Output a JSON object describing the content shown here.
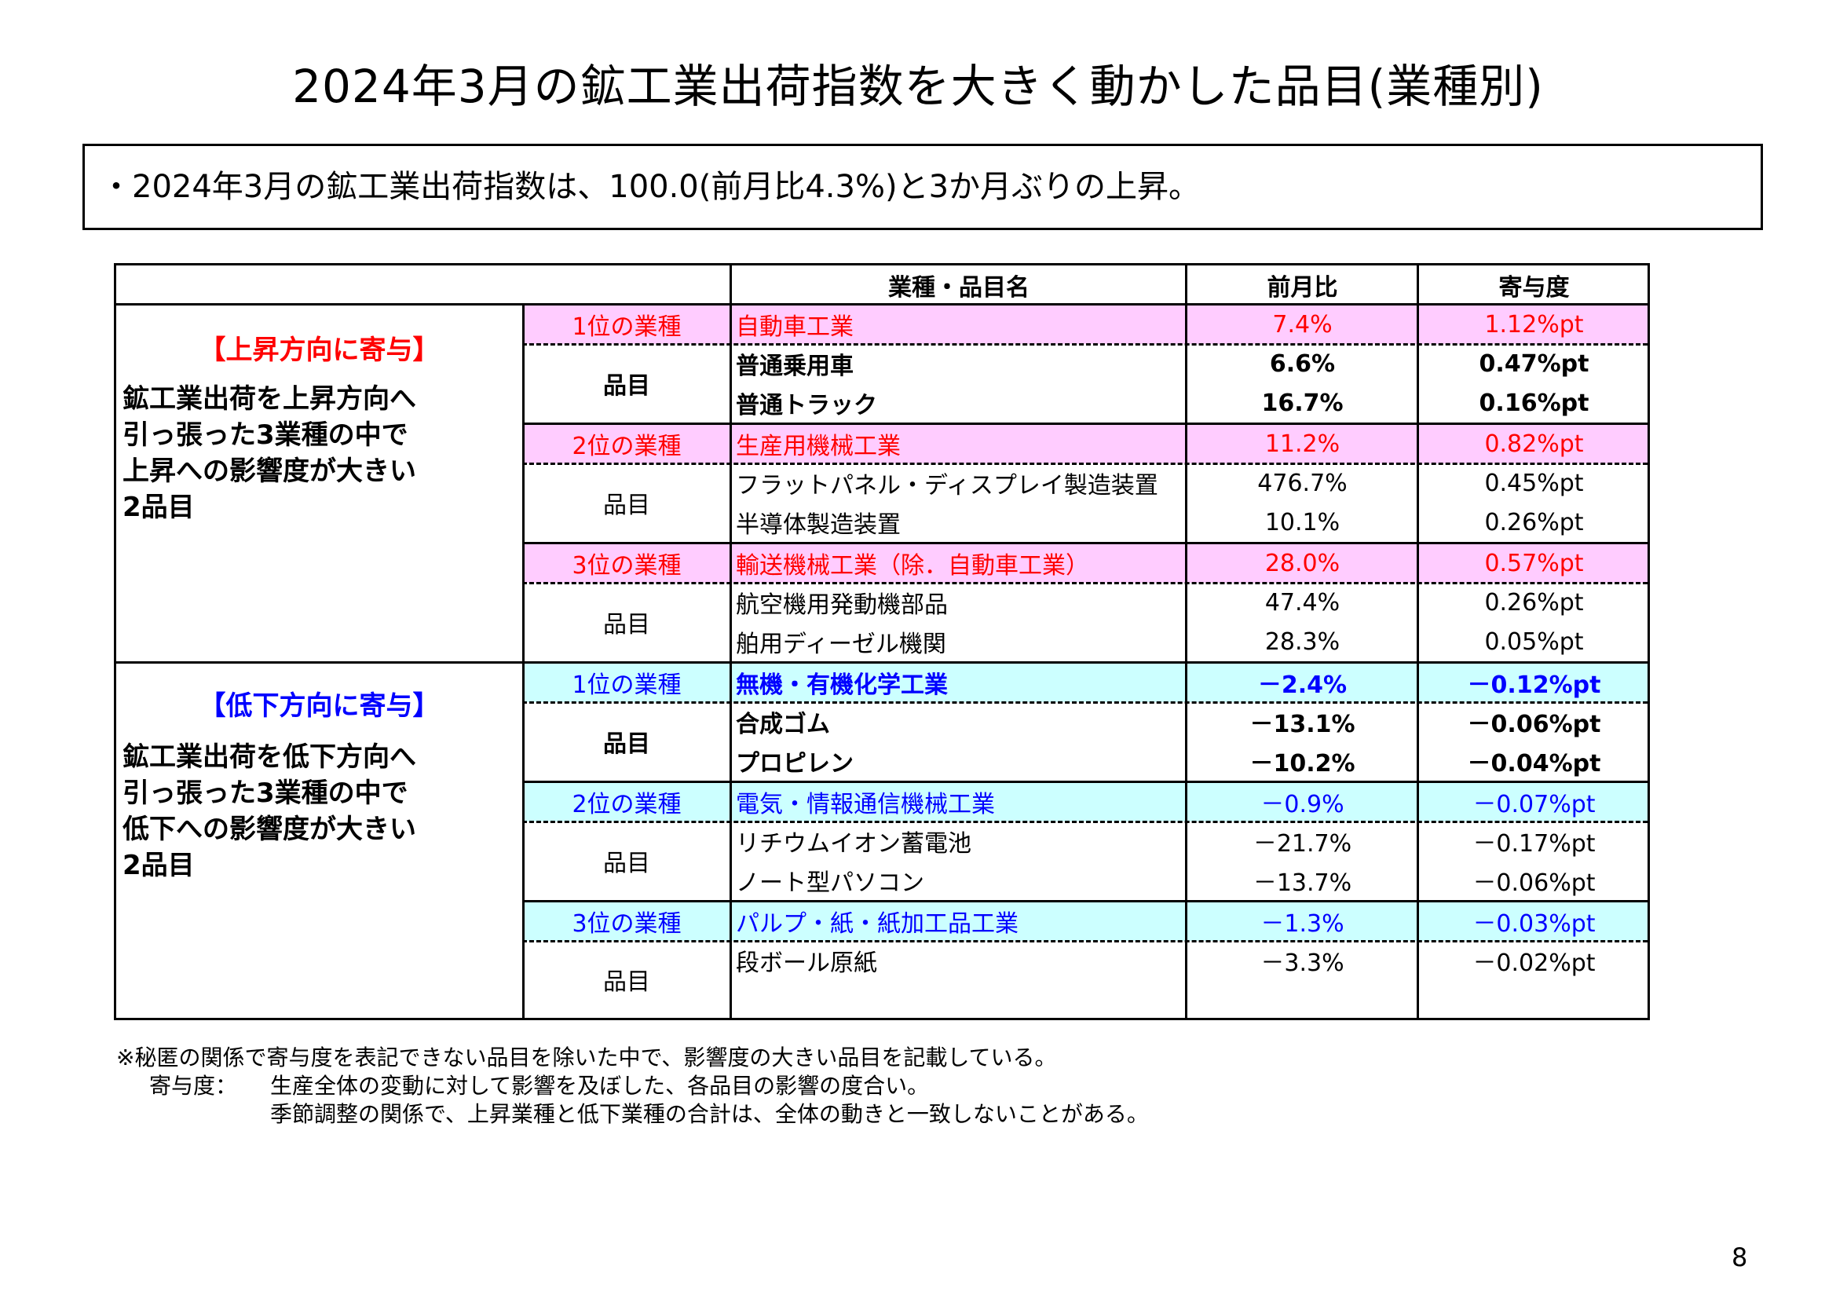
{
  "title": "2024年3月の鉱工業出荷指数を大きく動かした品目(業種別)",
  "summary": "・2024年3月の鉱工業出荷指数は、100.0(前月比4.3%)と3か月ぶりの上昇。",
  "header": {
    "name": "業種・品目名",
    "mom": "前月比",
    "contrib": "寄与度"
  },
  "rise": {
    "heading": "【上昇方向に寄与】",
    "desc": [
      "鉱工業出荷を上昇方向へ",
      "引っ張った3業種の中で",
      "上昇への影響度が大きい",
      "2品目"
    ],
    "groups": [
      {
        "rank": "1位の業種",
        "industry": "自動車工業",
        "mom": "7.4%",
        "contrib": "1.12%pt",
        "label": "品目",
        "items": [
          {
            "name": "普通乗用車",
            "mom": "6.6%",
            "contrib": "0.47%pt"
          },
          {
            "name": "普通トラック",
            "mom": "16.7%",
            "contrib": "0.16%pt"
          }
        ]
      },
      {
        "rank": "2位の業種",
        "industry": "生産用機械工業",
        "mom": "11.2%",
        "contrib": "0.82%pt",
        "label": "品目",
        "items": [
          {
            "name": "フラットパネル・ディスプレイ製造装置",
            "mom": "476.7%",
            "contrib": "0.45%pt"
          },
          {
            "name": "半導体製造装置",
            "mom": "10.1%",
            "contrib": "0.26%pt"
          }
        ]
      },
      {
        "rank": "3位の業種",
        "industry": "輸送機械工業（除．自動車工業）",
        "mom": "28.0%",
        "contrib": "0.57%pt",
        "label": "品目",
        "items": [
          {
            "name": "航空機用発動機部品",
            "mom": "47.4%",
            "contrib": "0.26%pt"
          },
          {
            "name": "舶用ディーゼル機関",
            "mom": "28.3%",
            "contrib": "0.05%pt"
          }
        ]
      }
    ]
  },
  "fall": {
    "heading": "【低下方向に寄与】",
    "desc": [
      "鉱工業出荷を低下方向へ",
      "引っ張った3業種の中で",
      "低下への影響度が大きい",
      "2品目"
    ],
    "groups": [
      {
        "rank": "1位の業種",
        "industry": "無機・有機化学工業",
        "mom": "－2.4%",
        "contrib": "－0.12%pt",
        "label": "品目",
        "items": [
          {
            "name": "合成ゴム",
            "mom": "－13.1%",
            "contrib": "－0.06%pt"
          },
          {
            "name": "プロピレン",
            "mom": "－10.2%",
            "contrib": "－0.04%pt"
          }
        ]
      },
      {
        "rank": "2位の業種",
        "industry": "電気・情報通信機械工業",
        "mom": "－0.9%",
        "contrib": "－0.07%pt",
        "label": "品目",
        "items": [
          {
            "name": "リチウムイオン蓄電池",
            "mom": "－21.7%",
            "contrib": "－0.17%pt"
          },
          {
            "name": "ノート型パソコン",
            "mom": "－13.7%",
            "contrib": "－0.06%pt"
          }
        ]
      },
      {
        "rank": "3位の業種",
        "industry": "パルプ・紙・紙加工品工業",
        "mom": "－1.3%",
        "contrib": "－0.03%pt",
        "label": "品目",
        "items": [
          {
            "name": "段ボール原紙",
            "mom": "－3.3%",
            "contrib": "－0.02%pt"
          }
        ]
      }
    ]
  },
  "notes": [
    "※秘匿の関係で寄与度を表記できない品目を除いた中で、影響度の大きい品目を記載している。",
    "寄与度：",
    "生産全体の変動に対して影響を及ぼした、各品目の影響の度合い。",
    "季節調整の関係で、上昇業種と低下業種の合計は、全体の動きと一致しないことがある。"
  ],
  "page_number": "8"
}
